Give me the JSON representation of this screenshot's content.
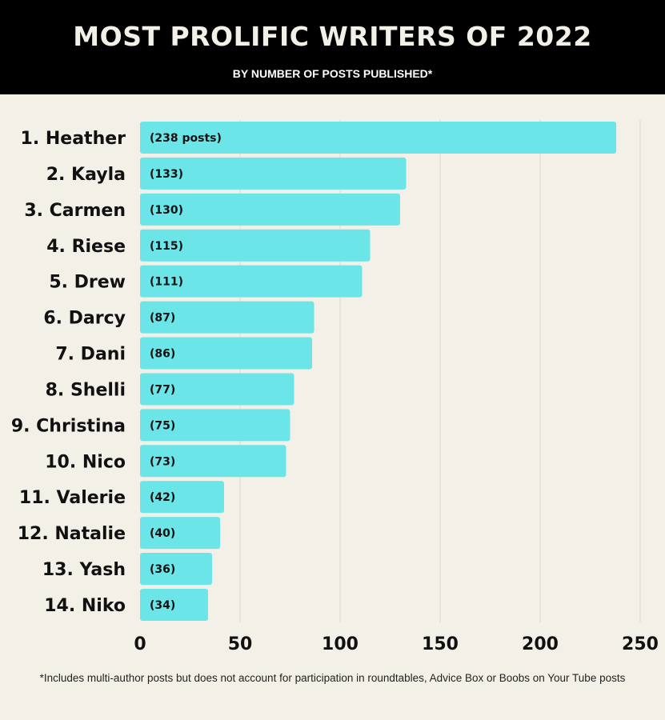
{
  "header": {
    "title": "MOST PROLIFIC WRITERS OF 2022",
    "subtitle": "BY NUMBER OF POSTS PUBLISHED*"
  },
  "footnote": "*Includes multi-author posts but does not account for participation in roundtables, Advice Box or Boobs on Your Tube posts",
  "colors": {
    "bar": "#6be5e8",
    "header_bg": "#000000",
    "background": "#f3f0e8",
    "grid": "#dcd8cf"
  },
  "chart_data": {
    "type": "bar",
    "orientation": "horizontal",
    "title": "MOST PROLIFIC WRITERS OF 2022",
    "subtitle": "BY NUMBER OF POSTS PUBLISHED*",
    "categories": [
      "1. Heather",
      "2. Kayla",
      "3. Carmen",
      "4. Riese",
      "5. Drew",
      "6. Darcy",
      "7. Dani",
      "8. Shelli",
      "9. Christina",
      "10. Nico",
      "11. Valerie",
      "12. Natalie",
      "13. Yash",
      "14. Niko"
    ],
    "values": [
      238,
      133,
      130,
      115,
      111,
      87,
      86,
      77,
      75,
      73,
      42,
      40,
      36,
      34
    ],
    "data_labels": [
      "(238 posts)",
      "(133)",
      "(130)",
      "(115)",
      "(111)",
      "(87)",
      "(86)",
      "(77)",
      "(75)",
      "(73)",
      "(42)",
      "(40)",
      "(36)",
      "(34)"
    ],
    "x_ticks": [
      "0",
      "50",
      "100",
      "150",
      "200",
      "250"
    ],
    "xlim": [
      0,
      250
    ],
    "grid": true,
    "legend": "none"
  }
}
